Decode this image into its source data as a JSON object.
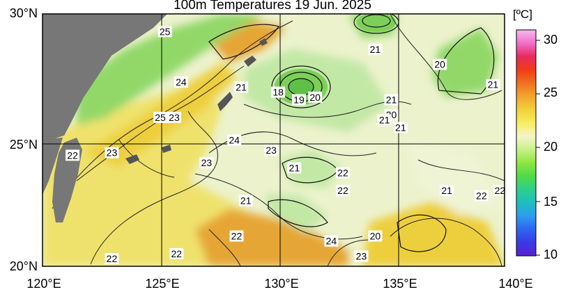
{
  "title": "100m Temperatures  19 Jun. 2025",
  "map": {
    "lat_ticks": [
      "30°N",
      "25°N",
      "20°N"
    ],
    "lon_ticks": [
      "120°E",
      "125°E",
      "130°E",
      "135°E",
      "140°E"
    ],
    "colors": {
      "land": "#777777",
      "c20": "#c2e8a6",
      "c21": "#92d869",
      "c22": "#e9e2a0",
      "c23": "#efe26c",
      "c24": "#edcf3c",
      "c25": "#e6a634",
      "c27": "#e87a24",
      "pale": "#eef4d4"
    },
    "contour_labels": [
      {
        "text": "25",
        "lon": 125.3,
        "lat": 29.3
      },
      {
        "text": "24",
        "lon": 126.0,
        "lat": 27.3
      },
      {
        "text": "21",
        "lon": 128.6,
        "lat": 27.1
      },
      {
        "text": "18",
        "lon": 130.2,
        "lat": 26.9
      },
      {
        "text": "19",
        "lon": 131.1,
        "lat": 26.6
      },
      {
        "text": "20",
        "lon": 131.8,
        "lat": 26.7
      },
      {
        "text": "21",
        "lon": 134.4,
        "lat": 28.6
      },
      {
        "text": "20",
        "lon": 137.2,
        "lat": 28.0
      },
      {
        "text": "21",
        "lon": 139.5,
        "lat": 27.2
      },
      {
        "text": "21",
        "lon": 135.1,
        "lat": 26.6
      },
      {
        "text": "20",
        "lon": 135.1,
        "lat": 26.0
      },
      {
        "text": "21",
        "lon": 134.8,
        "lat": 25.8
      },
      {
        "text": "21",
        "lon": 135.5,
        "lat": 25.5
      },
      {
        "text": "25",
        "lon": 125.1,
        "lat": 25.9
      },
      {
        "text": "23",
        "lon": 125.7,
        "lat": 25.9
      },
      {
        "text": "24",
        "lon": 128.3,
        "lat": 25.0
      },
      {
        "text": "23",
        "lon": 129.9,
        "lat": 24.6
      },
      {
        "text": "22",
        "lon": 121.3,
        "lat": 24.4
      },
      {
        "text": "23",
        "lon": 123.0,
        "lat": 24.5
      },
      {
        "text": "23",
        "lon": 127.1,
        "lat": 24.1
      },
      {
        "text": "21",
        "lon": 130.9,
        "lat": 23.9
      },
      {
        "text": "22",
        "lon": 133.0,
        "lat": 23.7
      },
      {
        "text": "22",
        "lon": 133.0,
        "lat": 23.0
      },
      {
        "text": "21",
        "lon": 128.8,
        "lat": 22.6
      },
      {
        "text": "21",
        "lon": 137.5,
        "lat": 23.0
      },
      {
        "text": "22",
        "lon": 139.0,
        "lat": 22.8
      },
      {
        "text": "22",
        "lon": 139.8,
        "lat": 23.0
      },
      {
        "text": "22",
        "lon": 128.4,
        "lat": 21.2
      },
      {
        "text": "20",
        "lon": 134.4,
        "lat": 21.2
      },
      {
        "text": "24",
        "lon": 132.5,
        "lat": 21.0
      },
      {
        "text": "22",
        "lon": 125.8,
        "lat": 20.5
      },
      {
        "text": "23",
        "lon": 133.8,
        "lat": 20.4
      },
      {
        "text": "22",
        "lon": 123.0,
        "lat": 20.3
      }
    ]
  },
  "colorbar": {
    "unit": "[ºC]",
    "ticks": [
      "30",
      "25",
      "20",
      "15",
      "10"
    ],
    "stops": [
      "#5a1fd0",
      "#3a3ae8",
      "#2f66f0",
      "#2d9cee",
      "#1dbfbf",
      "#2ecf8c",
      "#4fdb45",
      "#8fe63f",
      "#c8f08a",
      "#f7f4c8",
      "#f6ee5e",
      "#f2d03a",
      "#f2a52e",
      "#f07020",
      "#f03c18",
      "#e82a60",
      "#f070c8",
      "#f8b8ee"
    ]
  }
}
